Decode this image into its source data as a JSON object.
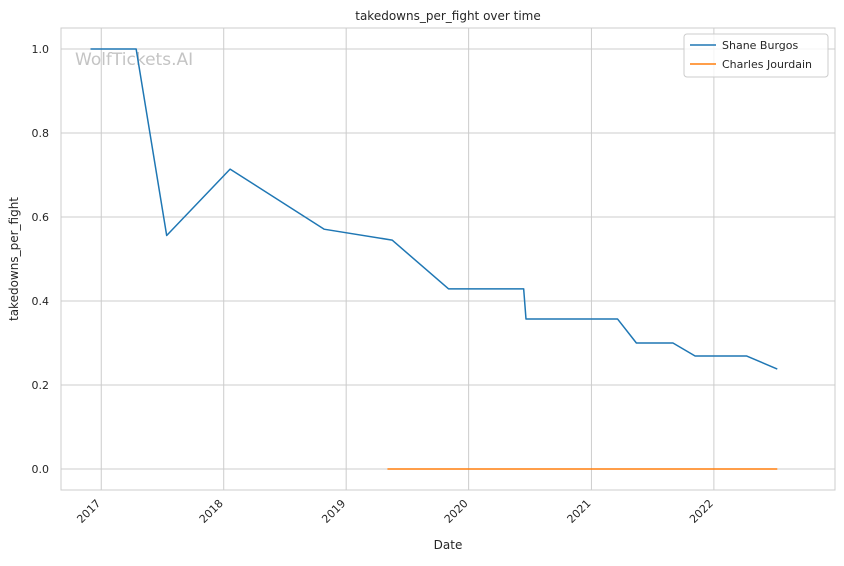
{
  "chart_data": {
    "type": "line",
    "title": "takedowns_per_fight over time",
    "xlabel": "Date",
    "ylabel": "takedowns_per_fight",
    "watermark": "WolfTickets.AI",
    "x_ticks": [
      "2017",
      "2018",
      "2019",
      "2020",
      "2021",
      "2022"
    ],
    "y_ticks": [
      "0.0",
      "0.2",
      "0.4",
      "0.6",
      "0.8",
      "1.0"
    ],
    "xlim": [
      "2016-09-03",
      "2022-12-28"
    ],
    "ylim": [
      -0.05,
      1.05
    ],
    "grid": true,
    "legend_position": "top-right",
    "series": [
      {
        "name": "Shane Burgos",
        "color": "#1f77b4",
        "points": [
          [
            "2016-11-30",
            1.0
          ],
          [
            "2017-04-15",
            1.0
          ],
          [
            "2017-07-15",
            0.556
          ],
          [
            "2018-01-20",
            0.714
          ],
          [
            "2018-10-27",
            0.571
          ],
          [
            "2019-05-18",
            0.545
          ],
          [
            "2019-11-02",
            0.429
          ],
          [
            "2020-06-13",
            0.429
          ],
          [
            "2020-06-20",
            0.357
          ],
          [
            "2021-03-20",
            0.357
          ],
          [
            "2021-05-15",
            0.3
          ],
          [
            "2021-09-01",
            0.3
          ],
          [
            "2021-11-06",
            0.269
          ],
          [
            "2022-04-09",
            0.269
          ],
          [
            "2022-07-09",
            0.238
          ]
        ]
      },
      {
        "name": "Charles Jourdain",
        "color": "#ff7f0e",
        "points": [
          [
            "2019-05-04",
            0.0
          ],
          [
            "2022-07-09",
            0.0
          ]
        ]
      }
    ]
  }
}
